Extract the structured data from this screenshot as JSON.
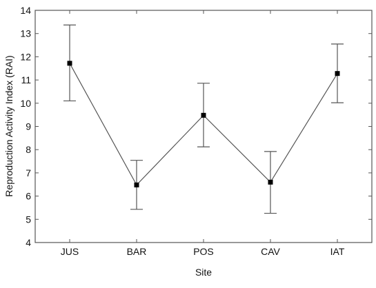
{
  "chart_data": {
    "type": "line",
    "xlabel": "Site",
    "ylabel": "Reproduction Activity Index (RAI)",
    "categories": [
      "JUS",
      "BAR",
      "POS",
      "CAV",
      "IAT"
    ],
    "series": [
      {
        "values": [
          11.72,
          6.48,
          9.48,
          6.6,
          11.28
        ],
        "error_low": [
          10.1,
          5.43,
          8.12,
          5.26,
          10.02
        ],
        "error_high": [
          13.37,
          7.54,
          10.86,
          7.92,
          12.55
        ]
      }
    ],
    "ylim": [
      4,
      14
    ],
    "yticks": [
      4,
      5,
      6,
      7,
      8,
      9,
      10,
      11,
      12,
      13,
      14
    ],
    "grid": false,
    "legend": "none",
    "colors": {
      "line": "#555555",
      "marker": "#000000",
      "error_bar": "#555555",
      "axis": "#555555",
      "text": "#111111"
    }
  }
}
